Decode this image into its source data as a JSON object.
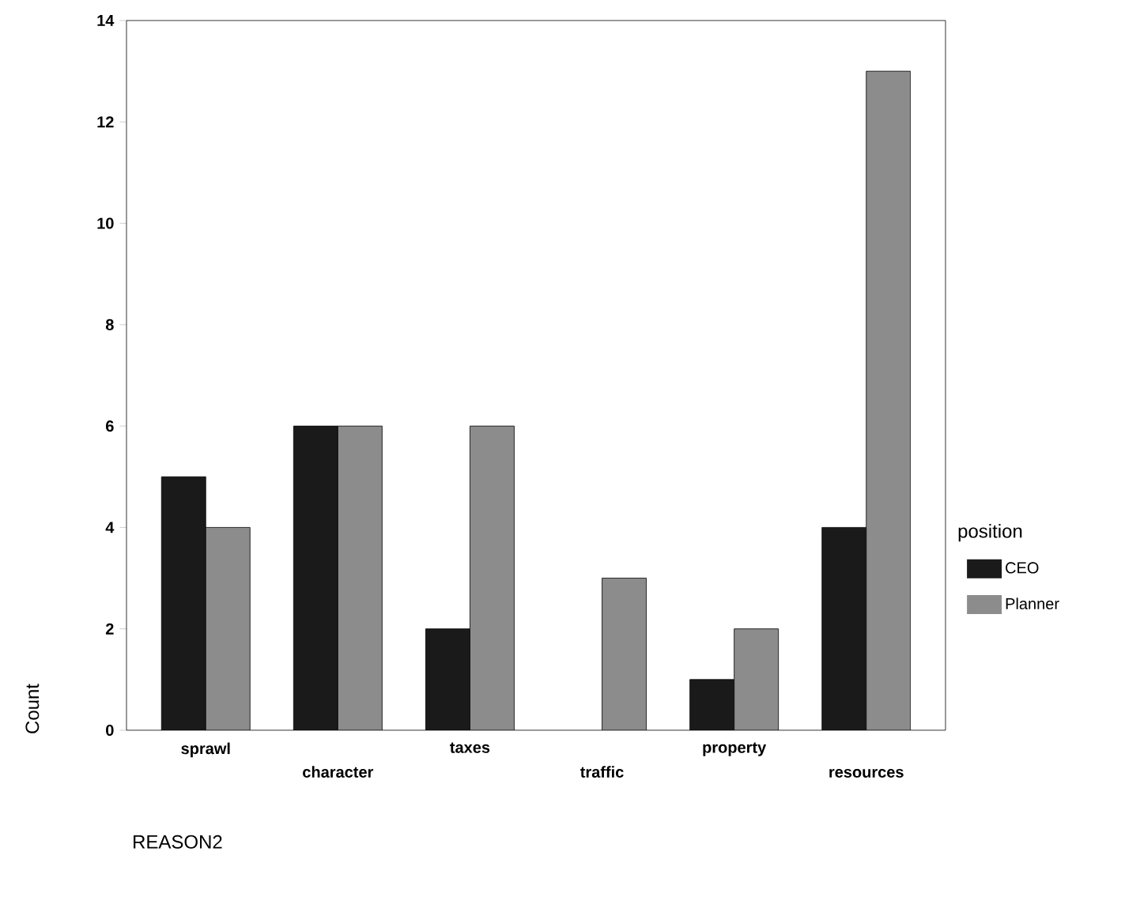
{
  "chart_data": {
    "type": "bar",
    "xlabel": "REASON2",
    "ylabel": "Count",
    "legend_title": "position",
    "categories": [
      "sprawl",
      "character",
      "taxes",
      "traffic",
      "property",
      "resources"
    ],
    "series": [
      {
        "name": "CEO",
        "color": "#1a1a1a",
        "values": [
          5,
          6,
          2,
          null,
          1,
          4
        ]
      },
      {
        "name": "Planner",
        "color": "#8c8c8c",
        "values": [
          4,
          6,
          6,
          3,
          2,
          13
        ]
      }
    ],
    "ylim": [
      0,
      14
    ],
    "yticks": [
      0,
      2,
      4,
      6,
      8,
      10,
      12,
      14
    ],
    "legend": "right",
    "grid": false
  }
}
